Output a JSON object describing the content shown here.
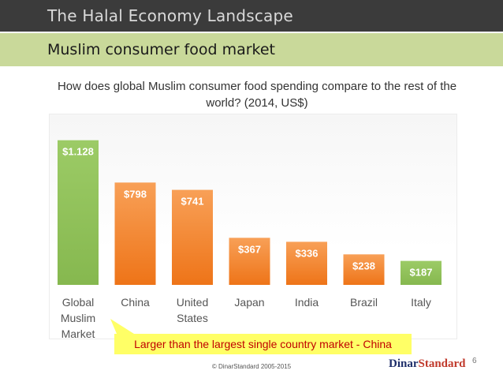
{
  "header": {
    "title": "The Halal Economy Landscape"
  },
  "subheader": {
    "title": "Muslim consumer food market"
  },
  "question": "How does global Muslim consumer food spending compare to the rest of the world? (2014, US$)",
  "chart_data": {
    "type": "bar",
    "title": "",
    "xlabel": "",
    "ylabel": "",
    "categories": [
      "Global\nMuslim\nMarket",
      "China",
      "United\nStates",
      "Japan",
      "India",
      "Brazil",
      "Italy"
    ],
    "values": [
      1128,
      798,
      741,
      367,
      336,
      238,
      187
    ],
    "value_labels": [
      "$1.128",
      "$798",
      "$741",
      "$367",
      "$336",
      "$238",
      "$187"
    ],
    "ylim": [
      0,
      1200
    ],
    "grid": false,
    "colors": {
      "muslim": "#8fc15a",
      "country": "#f07d1f",
      "italy": "#8fc15a",
      "label": "#ffffff",
      "tick": "#555555"
    }
  },
  "callout": "Larger than the largest  single country market - China",
  "footer": {
    "copyright": "© DinarStandard 2005-2015",
    "logo_part1": "Dinar",
    "logo_part2": "Standard",
    "page_number": "6"
  },
  "colors": {
    "header_bg": "#3b3b3b",
    "subheader_bg": "#c9d99a",
    "callout_bg": "#ffff66",
    "callout_text": "#c00000"
  }
}
